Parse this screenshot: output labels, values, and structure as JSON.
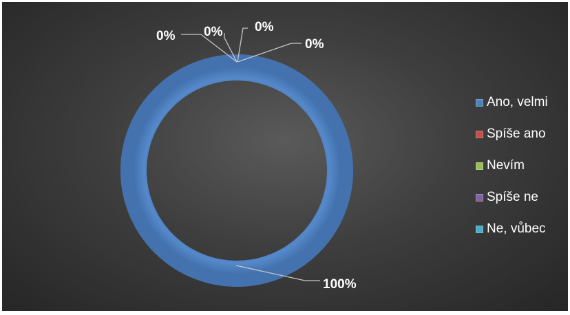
{
  "chart_data": {
    "type": "pie",
    "subtype": "doughnut",
    "categories": [
      "Ano, velmi",
      "Spíše ano",
      "Nevím",
      "Spíše ne",
      "Ne, vůbec"
    ],
    "values": [
      100,
      0,
      0,
      0,
      0
    ],
    "data_labels": [
      "100%",
      "0%",
      "0%",
      "0%",
      "0%"
    ],
    "colors": [
      "#4f81bd",
      "#c0504d",
      "#9bbb59",
      "#8064a2",
      "#4bacc6"
    ],
    "legend_position": "right",
    "background": "dark radial gradient"
  }
}
